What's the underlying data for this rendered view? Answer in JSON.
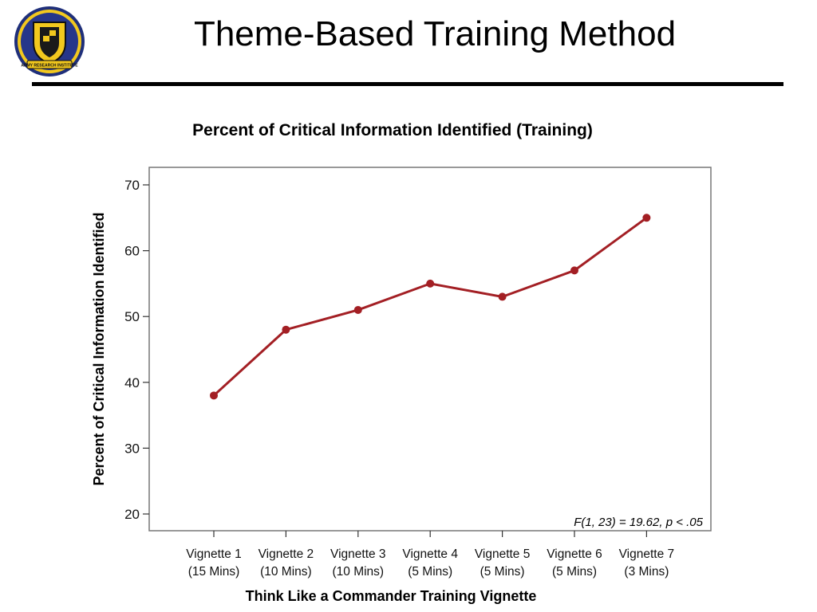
{
  "slide": {
    "title": "Theme-Based Training Method",
    "logo_icon": "army-research-institute-crest",
    "logo_text": "ARMY RESEARCH INSTITUTE"
  },
  "chart_data": {
    "type": "line",
    "title": "Percent of Critical Information Identified (Training)",
    "xlabel": "Think Like a Commander Training Vignette",
    "ylabel": "Percent of Critical Information Identified",
    "categories": [
      [
        "Vignette 1",
        "(15 Mins)"
      ],
      [
        "Vignette 2",
        "(10 Mins)"
      ],
      [
        "Vignette 3",
        "(10 Mins)"
      ],
      [
        "Vignette 4",
        "(5 Mins)"
      ],
      [
        "Vignette 5",
        "(5 Mins)"
      ],
      [
        "Vignette 6",
        "(5 Mins)"
      ],
      [
        "Vignette 7",
        "(3 Mins)"
      ]
    ],
    "series": [
      {
        "values": [
          38,
          48,
          51,
          55,
          53,
          57,
          65
        ],
        "color": "#a31f24"
      }
    ],
    "ylim": [
      20,
      70
    ],
    "yticks": [
      20,
      30,
      40,
      50,
      60,
      70
    ],
    "grid": false,
    "annotation": "F(1, 23) = 19.62, p < .05"
  }
}
